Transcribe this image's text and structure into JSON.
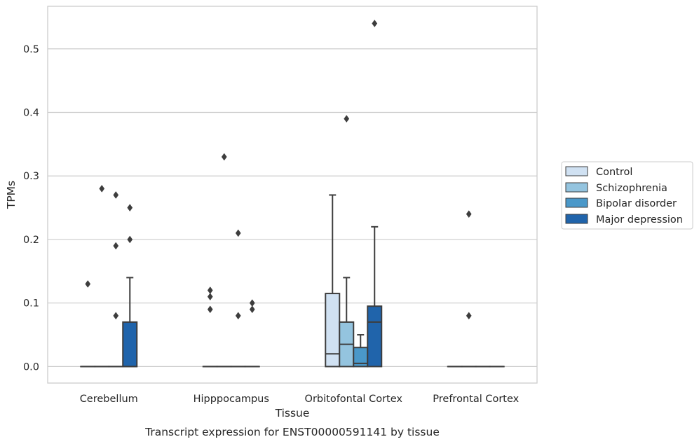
{
  "chart_data": {
    "type": "box",
    "title": "",
    "xlabel": "Tissue",
    "ylabel": "TPMs",
    "caption": "Transcript expression for ENST00000591141 by tissue",
    "ylim": [
      -0.026,
      0.567
    ],
    "yticks": [
      0.0,
      0.1,
      0.2,
      0.3,
      0.4,
      0.5
    ],
    "ytick_labels": [
      "0.0",
      "0.1",
      "0.2",
      "0.3",
      "0.4",
      "0.5"
    ],
    "grid": "horizontal",
    "legend_position": "right",
    "categories": [
      "Cerebellum",
      "Hipppocampus",
      "Orbitofontal Cortex",
      "Prefrontal Cortex"
    ],
    "series": [
      {
        "name": "Control",
        "color": "#d0e1f2",
        "boxes": [
          {
            "q1": 0,
            "median": 0,
            "q3": 0,
            "whisker_low": 0,
            "whisker_high": 0,
            "outliers": [
              0.13
            ]
          },
          {
            "q1": 0,
            "median": 0,
            "q3": 0,
            "whisker_low": 0,
            "whisker_high": 0,
            "outliers": [
              0.09,
              0.11,
              0.12
            ]
          },
          {
            "q1": 0,
            "median": 0.02,
            "q3": 0.115,
            "whisker_low": 0,
            "whisker_high": 0.27,
            "outliers": []
          },
          {
            "q1": 0,
            "median": 0,
            "q3": 0,
            "whisker_low": 0,
            "whisker_high": 0,
            "outliers": []
          }
        ]
      },
      {
        "name": "Schizophrenia",
        "color": "#94c4df",
        "boxes": [
          {
            "q1": 0,
            "median": 0,
            "q3": 0,
            "whisker_low": 0,
            "whisker_high": 0,
            "outliers": [
              0.28
            ]
          },
          {
            "q1": 0,
            "median": 0,
            "q3": 0,
            "whisker_low": 0,
            "whisker_high": 0,
            "outliers": [
              0.33
            ]
          },
          {
            "q1": 0,
            "median": 0.035,
            "q3": 0.07,
            "whisker_low": 0,
            "whisker_high": 0.14,
            "outliers": [
              0.39
            ]
          },
          {
            "q1": 0,
            "median": 0,
            "q3": 0,
            "whisker_low": 0,
            "whisker_high": 0,
            "outliers": [
              0.08,
              0.24
            ]
          }
        ]
      },
      {
        "name": "Bipolar disorder",
        "color": "#4a98c9",
        "boxes": [
          {
            "q1": 0,
            "median": 0,
            "q3": 0,
            "whisker_low": 0,
            "whisker_high": 0,
            "outliers": [
              0.08,
              0.19,
              0.27
            ]
          },
          {
            "q1": 0,
            "median": 0,
            "q3": 0,
            "whisker_low": 0,
            "whisker_high": 0,
            "outliers": [
              0.08,
              0.21
            ]
          },
          {
            "q1": 0,
            "median": 0.005,
            "q3": 0.03,
            "whisker_low": 0,
            "whisker_high": 0.05,
            "outliers": []
          },
          {
            "q1": 0,
            "median": 0,
            "q3": 0,
            "whisker_low": 0,
            "whisker_high": 0,
            "outliers": []
          }
        ]
      },
      {
        "name": "Major depression",
        "color": "#2064ab",
        "boxes": [
          {
            "q1": 0,
            "median": 0,
            "q3": 0.07,
            "whisker_low": 0,
            "whisker_high": 0.14,
            "outliers": [
              0.2,
              0.25
            ]
          },
          {
            "q1": 0,
            "median": 0,
            "q3": 0,
            "whisker_low": 0,
            "whisker_high": 0,
            "outliers": [
              0.09,
              0.1
            ]
          },
          {
            "q1": 0,
            "median": 0.07,
            "q3": 0.095,
            "whisker_low": 0,
            "whisker_high": 0.22,
            "outliers": [
              0.54
            ]
          },
          {
            "q1": 0,
            "median": 0,
            "q3": 0,
            "whisker_low": 0,
            "whisker_high": 0,
            "outliers": []
          }
        ]
      }
    ],
    "colors": {
      "grid": "#cccccc",
      "frame": "#cccccc",
      "box_edge": "#3d3d3d",
      "legend_frame": "#cccccc"
    }
  }
}
